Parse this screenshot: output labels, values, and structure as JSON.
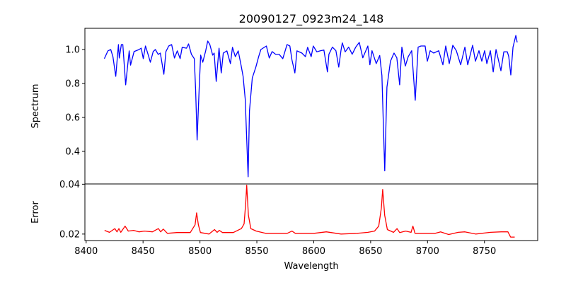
{
  "chart_data": [
    {
      "type": "line",
      "title": "20090127_0923m24_148",
      "xlabel": "",
      "ylabel": "Spectrum",
      "xlim": [
        8398.9,
        8796.8
      ],
      "ylim": [
        0.208,
        1.125
      ],
      "xticks": [
        8400,
        8450,
        8500,
        8550,
        8600,
        8650,
        8700,
        8750
      ],
      "yticks": [
        "0.4",
        "0.6",
        "0.8",
        "1.0"
      ],
      "grid": false,
      "color": "#0000ff",
      "series": [
        {
          "name": "Spectrum",
          "points": [
            [
              8416.0,
              0.946
            ],
            [
              8419.1,
              0.992
            ],
            [
              8421.6,
              1.0
            ],
            [
              8423.5,
              0.958
            ],
            [
              8426.0,
              0.842
            ],
            [
              8428.4,
              1.029
            ],
            [
              8429.1,
              0.95
            ],
            [
              8430.9,
              1.029
            ],
            [
              8432.2,
              1.029
            ],
            [
              8434.7,
              0.792
            ],
            [
              8437.8,
              0.992
            ],
            [
              8439.0,
              0.908
            ],
            [
              8442.1,
              0.988
            ],
            [
              8446.5,
              1.0
            ],
            [
              8448.4,
              1.008
            ],
            [
              8450.2,
              0.946
            ],
            [
              8452.1,
              1.021
            ],
            [
              8454.6,
              0.967
            ],
            [
              8456.4,
              0.925
            ],
            [
              8458.9,
              0.988
            ],
            [
              8460.8,
              1.0
            ],
            [
              8463.3,
              0.971
            ],
            [
              8465.2,
              0.979
            ],
            [
              8468.3,
              0.854
            ],
            [
              8470.1,
              0.988
            ],
            [
              8472.6,
              1.021
            ],
            [
              8475.1,
              1.029
            ],
            [
              8477.6,
              0.95
            ],
            [
              8480.1,
              0.992
            ],
            [
              8482.6,
              0.946
            ],
            [
              8484.4,
              1.013
            ],
            [
              8488.2,
              1.008
            ],
            [
              8490.0,
              1.033
            ],
            [
              8492.5,
              0.971
            ],
            [
              8495.0,
              0.946
            ],
            [
              8496.2,
              0.763
            ],
            [
              8497.5,
              0.467
            ],
            [
              8499.4,
              0.779
            ],
            [
              8500.6,
              0.967
            ],
            [
              8502.5,
              0.925
            ],
            [
              8505.0,
              0.992
            ],
            [
              8506.8,
              1.05
            ],
            [
              8508.7,
              1.029
            ],
            [
              8511.2,
              0.967
            ],
            [
              8512.5,
              0.979
            ],
            [
              8514.3,
              0.812
            ],
            [
              8516.8,
              1.008
            ],
            [
              8518.7,
              0.862
            ],
            [
              8520.5,
              0.979
            ],
            [
              8523.7,
              0.992
            ],
            [
              8526.8,
              0.917
            ],
            [
              8528.6,
              1.013
            ],
            [
              8531.1,
              0.958
            ],
            [
              8533.6,
              0.992
            ],
            [
              8536.1,
              0.908
            ],
            [
              8537.9,
              0.842
            ],
            [
              8539.8,
              0.708
            ],
            [
              8542.3,
              0.25
            ],
            [
              8543.5,
              0.638
            ],
            [
              8546.0,
              0.833
            ],
            [
              8549.1,
              0.896
            ],
            [
              8551.6,
              0.958
            ],
            [
              8553.5,
              1.0
            ],
            [
              8558.4,
              1.021
            ],
            [
              8560.9,
              0.95
            ],
            [
              8563.4,
              0.988
            ],
            [
              8566.6,
              0.971
            ],
            [
              8569.7,
              0.971
            ],
            [
              8572.8,
              0.946
            ],
            [
              8576.5,
              1.029
            ],
            [
              8579.0,
              1.021
            ],
            [
              8580.9,
              0.938
            ],
            [
              8583.4,
              0.862
            ],
            [
              8585.2,
              0.992
            ],
            [
              8589.6,
              0.979
            ],
            [
              8592.7,
              0.958
            ],
            [
              8594.6,
              1.013
            ],
            [
              8597.7,
              0.958
            ],
            [
              8599.6,
              1.021
            ],
            [
              8602.7,
              0.986
            ],
            [
              8605.8,
              0.993
            ],
            [
              8608.9,
              0.997
            ],
            [
              8612.0,
              0.868
            ],
            [
              8613.3,
              0.972
            ],
            [
              8616.4,
              1.014
            ],
            [
              8619.5,
              0.993
            ],
            [
              8622.0,
              0.896
            ],
            [
              8623.9,
              0.993
            ],
            [
              8625.1,
              1.039
            ],
            [
              8627.6,
              0.986
            ],
            [
              8630.7,
              1.014
            ],
            [
              8633.8,
              0.972
            ],
            [
              8636.9,
              1.014
            ],
            [
              8640.0,
              1.042
            ],
            [
              8643.1,
              0.951
            ],
            [
              8647.5,
              1.021
            ],
            [
              8649.3,
              0.91
            ],
            [
              8651.2,
              0.993
            ],
            [
              8654.9,
              0.917
            ],
            [
              8658.0,
              0.965
            ],
            [
              8659.9,
              0.847
            ],
            [
              8662.4,
              0.285
            ],
            [
              8664.3,
              0.778
            ],
            [
              8667.4,
              0.931
            ],
            [
              8670.5,
              0.979
            ],
            [
              8673.0,
              0.951
            ],
            [
              8675.5,
              0.792
            ],
            [
              8677.4,
              1.014
            ],
            [
              8680.5,
              0.903
            ],
            [
              8683.0,
              0.958
            ],
            [
              8686.1,
              0.993
            ],
            [
              8689.2,
              0.701
            ],
            [
              8691.7,
              1.014
            ],
            [
              8694.2,
              1.021
            ],
            [
              8697.9,
              1.021
            ],
            [
              8699.8,
              0.931
            ],
            [
              8702.3,
              0.993
            ],
            [
              8705.4,
              0.979
            ],
            [
              8709.8,
              0.993
            ],
            [
              8713.5,
              0.91
            ],
            [
              8716.0,
              1.021
            ],
            [
              8719.1,
              0.917
            ],
            [
              8722.2,
              1.025
            ],
            [
              8725.3,
              0.993
            ],
            [
              8729.1,
              0.91
            ],
            [
              8732.8,
              1.014
            ],
            [
              8735.3,
              0.91
            ],
            [
              8739.6,
              1.025
            ],
            [
              8742.1,
              0.931
            ],
            [
              8745.2,
              0.993
            ],
            [
              8747.7,
              0.931
            ],
            [
              8750.2,
              0.993
            ],
            [
              8752.1,
              0.917
            ],
            [
              8755.2,
              0.993
            ],
            [
              8757.7,
              0.868
            ],
            [
              8760.2,
              1.0
            ],
            [
              8764.5,
              0.875
            ],
            [
              8767.0,
              0.986
            ],
            [
              8770.1,
              0.986
            ],
            [
              8771.4,
              0.958
            ],
            [
              8773.2,
              0.85
            ],
            [
              8775.1,
              1.014
            ],
            [
              8777.6,
              1.083
            ],
            [
              8778.8,
              1.042
            ]
          ]
        }
      ]
    },
    {
      "type": "line",
      "title": "",
      "xlabel": "Wavelength",
      "ylabel": "Error",
      "xlim": [
        8398.9,
        8796.8
      ],
      "ylim": [
        0.0174,
        0.0401
      ],
      "xticks": [
        8400,
        8450,
        8500,
        8550,
        8600,
        8650,
        8700,
        8750
      ],
      "yticks": [
        "0.02",
        "0.04"
      ],
      "grid": false,
      "color": "#ff0000",
      "series": [
        {
          "name": "Error",
          "points": [
            [
              8416.2,
              0.0215
            ],
            [
              8420.5,
              0.0207
            ],
            [
              8425.2,
              0.0222
            ],
            [
              8427.1,
              0.0209
            ],
            [
              8428.8,
              0.0222
            ],
            [
              8430.4,
              0.0207
            ],
            [
              8434.2,
              0.0232
            ],
            [
              8437.0,
              0.0212
            ],
            [
              8441.7,
              0.0215
            ],
            [
              8446.5,
              0.0209
            ],
            [
              8451.2,
              0.0212
            ],
            [
              8458.3,
              0.0209
            ],
            [
              8463.5,
              0.0222
            ],
            [
              8465.5,
              0.0209
            ],
            [
              8467.8,
              0.022
            ],
            [
              8471.4,
              0.0203
            ],
            [
              8479.7,
              0.0206
            ],
            [
              8491.5,
              0.0206
            ],
            [
              8495.7,
              0.0237
            ],
            [
              8497.1,
              0.0285
            ],
            [
              8498.6,
              0.0237
            ],
            [
              8500.4,
              0.0206
            ],
            [
              8508.0,
              0.02
            ],
            [
              8512.8,
              0.0218
            ],
            [
              8515.1,
              0.0207
            ],
            [
              8517.0,
              0.0215
            ],
            [
              8519.8,
              0.0206
            ],
            [
              8529.3,
              0.0206
            ],
            [
              8536.4,
              0.0222
            ],
            [
              8538.8,
              0.0241
            ],
            [
              8540.2,
              0.0324
            ],
            [
              8541.1,
              0.0396
            ],
            [
              8542.6,
              0.0276
            ],
            [
              8544.7,
              0.0222
            ],
            [
              8549.4,
              0.0212
            ],
            [
              8557.7,
              0.0203
            ],
            [
              8576.7,
              0.0203
            ],
            [
              8580.9,
              0.0212
            ],
            [
              8583.8,
              0.0203
            ],
            [
              8600.3,
              0.0203
            ],
            [
              8611.0,
              0.0209
            ],
            [
              8624.0,
              0.02
            ],
            [
              8638.1,
              0.0203
            ],
            [
              8647.6,
              0.0207
            ],
            [
              8653.5,
              0.0212
            ],
            [
              8657.1,
              0.0232
            ],
            [
              8659.4,
              0.0304
            ],
            [
              8660.6,
              0.0379
            ],
            [
              8662.3,
              0.0276
            ],
            [
              8664.7,
              0.0218
            ],
            [
              8670.1,
              0.0207
            ],
            [
              8673.2,
              0.0222
            ],
            [
              8675.5,
              0.0206
            ],
            [
              8680.8,
              0.0212
            ],
            [
              8685.5,
              0.0207
            ],
            [
              8687.1,
              0.0232
            ],
            [
              8689.0,
              0.0203
            ],
            [
              8706.8,
              0.0203
            ],
            [
              8711.5,
              0.0209
            ],
            [
              8718.6,
              0.0198
            ],
            [
              8726.9,
              0.0207
            ],
            [
              8732.8,
              0.0209
            ],
            [
              8742.3,
              0.02
            ],
            [
              8755.3,
              0.0207
            ],
            [
              8764.7,
              0.0209
            ],
            [
              8770.6,
              0.0209
            ],
            [
              8773.0,
              0.0188
            ],
            [
              8776.6,
              0.0188
            ]
          ]
        }
      ]
    }
  ]
}
